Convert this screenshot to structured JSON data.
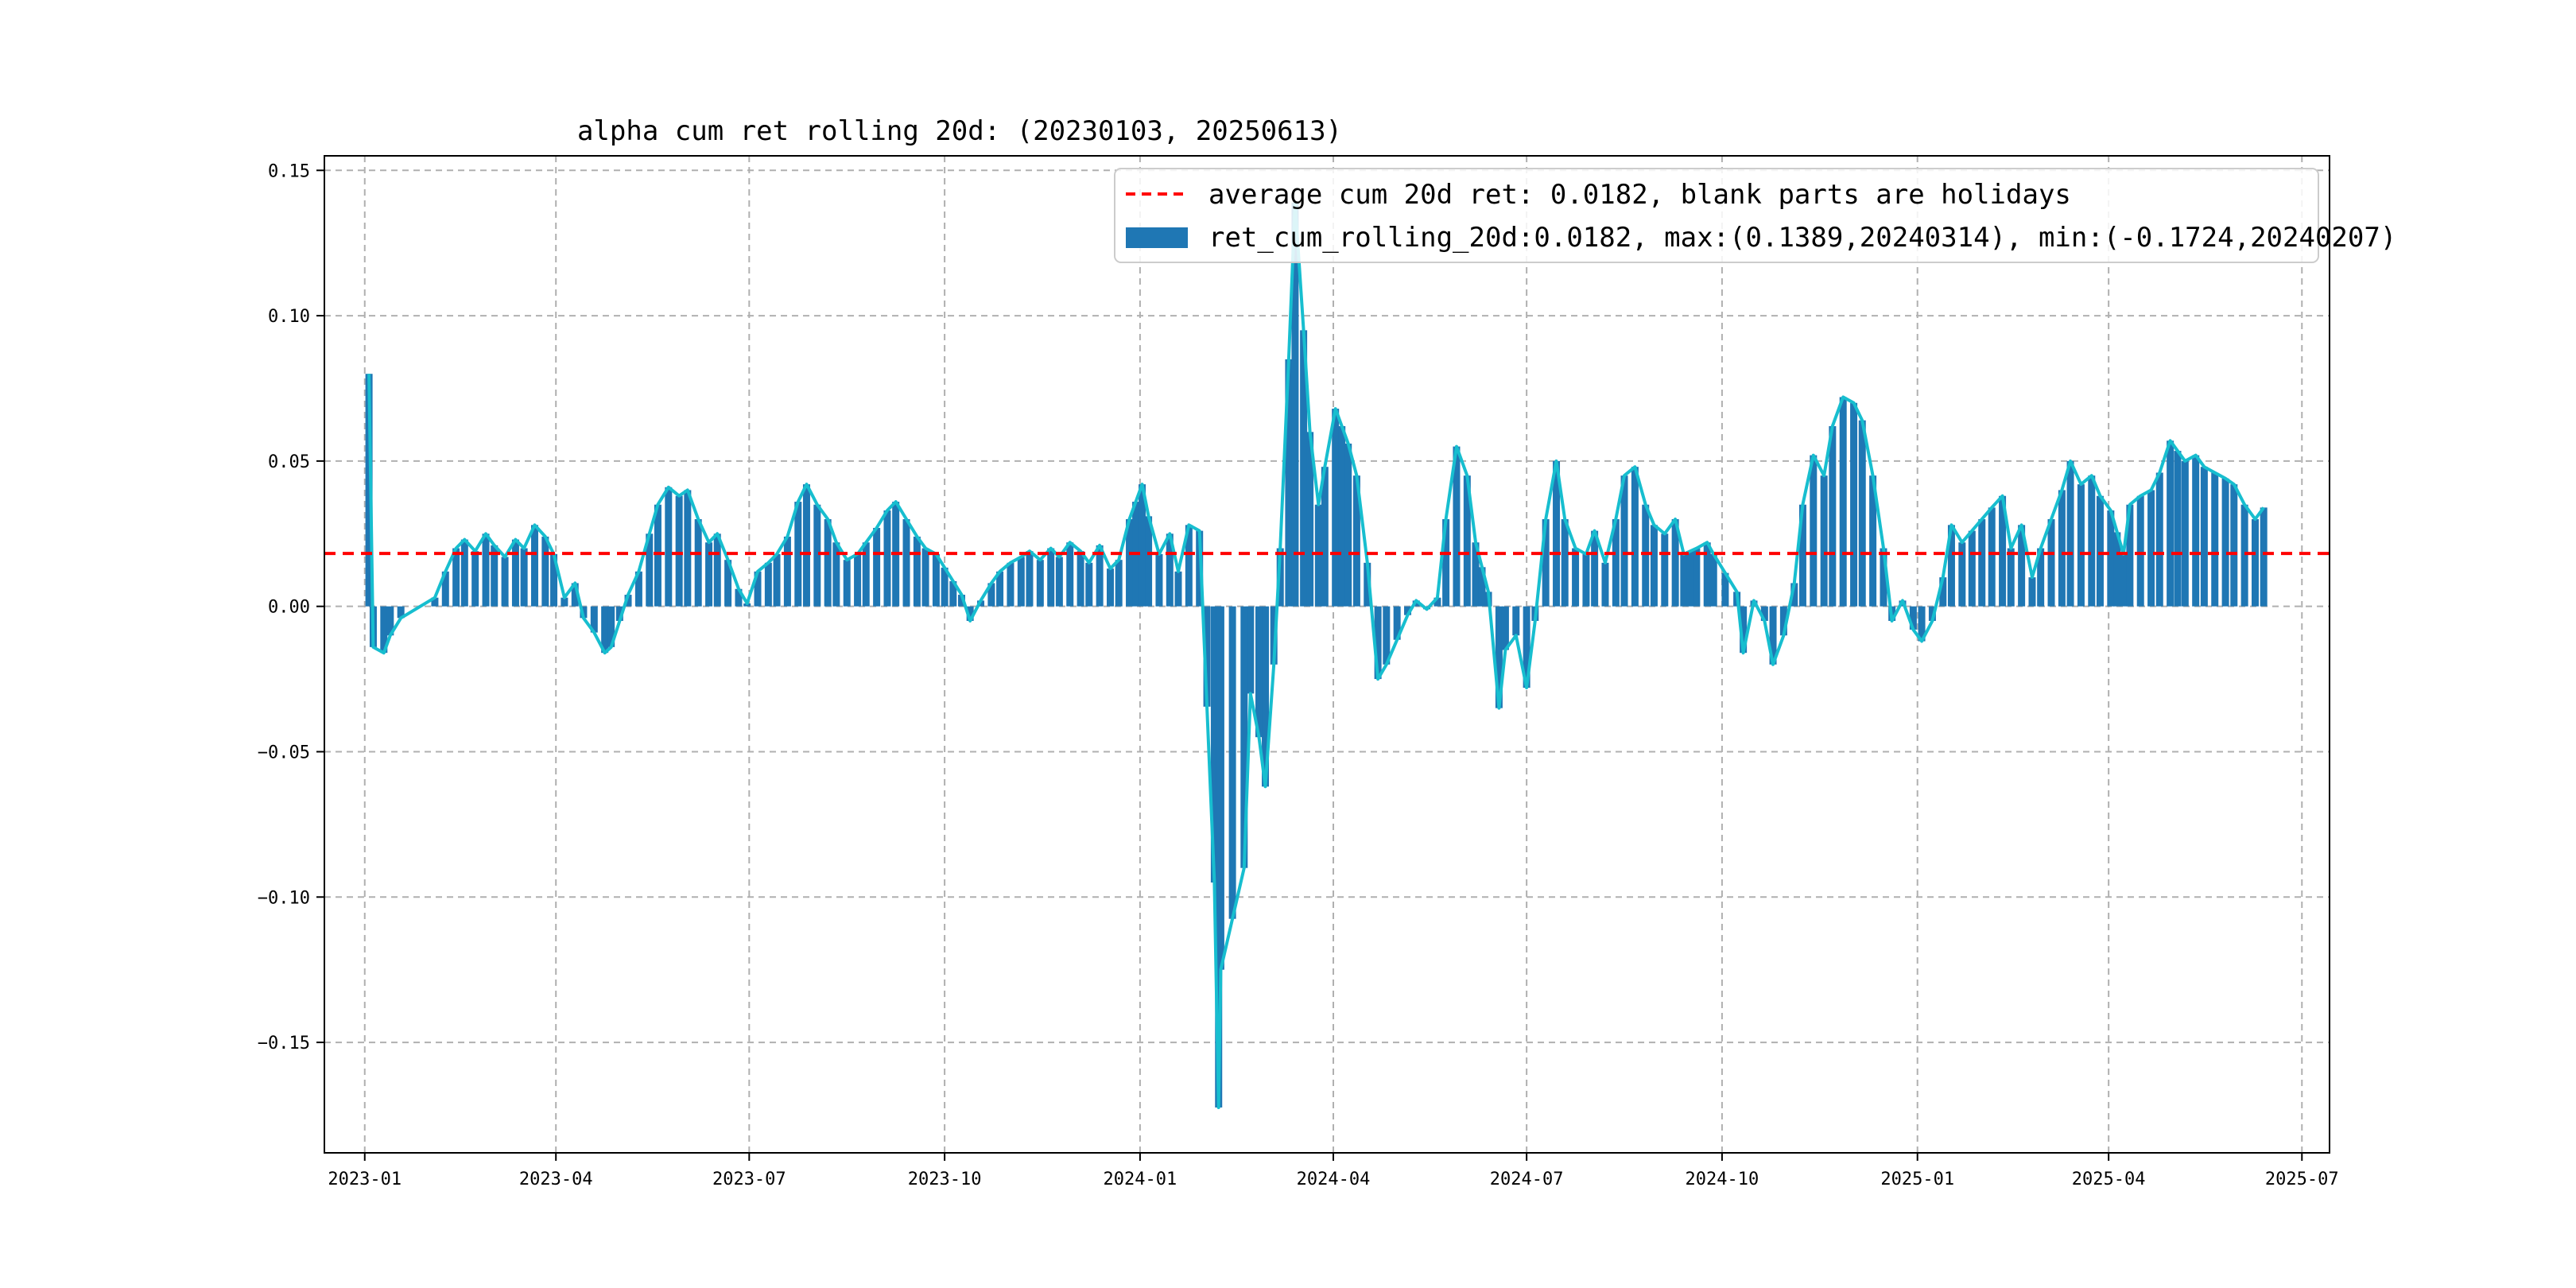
{
  "chart_data": {
    "type": "bar",
    "title": "alpha cum ret rolling 20d: (20230103, 20250613)",
    "xlabel": "",
    "ylabel": "",
    "x_range": [
      "2022-12-13",
      "2025-07-14"
    ],
    "ylim": [
      -0.188,
      0.155
    ],
    "x_ticks": [
      "2023-01-01",
      "2023-04-01",
      "2023-07-01",
      "2023-10-01",
      "2024-01-01",
      "2024-04-01",
      "2024-07-01",
      "2024-10-01",
      "2025-01-01",
      "2025-04-01",
      "2025-07-01"
    ],
    "x_tick_labels": [
      "2023-01",
      "2023-04",
      "2023-07",
      "2023-10",
      "2024-01",
      "2024-04",
      "2024-07",
      "2024-10",
      "2025-01",
      "2025-04",
      "2025-07"
    ],
    "y_ticks": [
      -0.15,
      -0.1,
      -0.05,
      0.0,
      0.05,
      0.1,
      0.15
    ],
    "y_tick_labels": [
      "−0.15",
      "−0.10",
      "−0.05",
      "0.00",
      "0.05",
      "0.10",
      "0.15"
    ],
    "grid": true,
    "legend_position": "top-right",
    "average": 0.0182,
    "series": [
      {
        "name": "ret_cum_rolling_20d:0.0182, max:(0.1389,20240314), min:(-0.1724,20240207)",
        "kind": "bar",
        "color": "#1f77b4"
      },
      {
        "name": "average cum 20d ret: 0.0182, blank parts are holidays",
        "kind": "hline",
        "value": 0.0182,
        "color": "#ff0000",
        "style": "dashed"
      },
      {
        "kind": "line",
        "color": "#17becf"
      }
    ],
    "points": [
      [
        "2023-01-03",
        0.08
      ],
      [
        "2023-01-05",
        -0.014
      ],
      [
        "2023-01-10",
        -0.016
      ],
      [
        "2023-01-13",
        -0.01
      ],
      [
        "2023-01-18",
        -0.004
      ],
      [
        "2023-02-03",
        0.003
      ],
      [
        "2023-02-08",
        0.012
      ],
      [
        "2023-02-13",
        0.02
      ],
      [
        "2023-02-17",
        0.023
      ],
      [
        "2023-02-22",
        0.019
      ],
      [
        "2023-02-27",
        0.025
      ],
      [
        "2023-03-03",
        0.021
      ],
      [
        "2023-03-08",
        0.017
      ],
      [
        "2023-03-13",
        0.023
      ],
      [
        "2023-03-17",
        0.02
      ],
      [
        "2023-03-22",
        0.028
      ],
      [
        "2023-03-27",
        0.024
      ],
      [
        "2023-03-31",
        0.018
      ],
      [
        "2023-04-05",
        0.003
      ],
      [
        "2023-04-10",
        0.008
      ],
      [
        "2023-04-14",
        -0.004
      ],
      [
        "2023-04-19",
        -0.009
      ],
      [
        "2023-04-24",
        -0.016
      ],
      [
        "2023-04-27",
        -0.014
      ],
      [
        "2023-05-05",
        0.004
      ],
      [
        "2023-05-10",
        0.012
      ],
      [
        "2023-05-15",
        0.025
      ],
      [
        "2023-05-19",
        0.035
      ],
      [
        "2023-05-24",
        0.041
      ],
      [
        "2023-05-29",
        0.038
      ],
      [
        "2023-06-02",
        0.04
      ],
      [
        "2023-06-07",
        0.03
      ],
      [
        "2023-06-12",
        0.022
      ],
      [
        "2023-06-16",
        0.025
      ],
      [
        "2023-06-21",
        0.016
      ],
      [
        "2023-06-26",
        0.006
      ],
      [
        "2023-06-30",
        0.001
      ],
      [
        "2023-07-05",
        0.012
      ],
      [
        "2023-07-10",
        0.015
      ],
      [
        "2023-07-14",
        0.018
      ],
      [
        "2023-07-19",
        0.024
      ],
      [
        "2023-07-24",
        0.036
      ],
      [
        "2023-07-28",
        0.042
      ],
      [
        "2023-08-02",
        0.035
      ],
      [
        "2023-08-07",
        0.03
      ],
      [
        "2023-08-11",
        0.022
      ],
      [
        "2023-08-16",
        0.016
      ],
      [
        "2023-08-21",
        0.018
      ],
      [
        "2023-08-25",
        0.022
      ],
      [
        "2023-08-30",
        0.027
      ],
      [
        "2023-09-04",
        0.033
      ],
      [
        "2023-09-08",
        0.036
      ],
      [
        "2023-09-13",
        0.03
      ],
      [
        "2023-09-18",
        0.024
      ],
      [
        "2023-09-22",
        0.02
      ],
      [
        "2023-09-27",
        0.018
      ],
      [
        "2023-10-09",
        0.004
      ],
      [
        "2023-10-13",
        -0.005
      ],
      [
        "2023-10-18",
        0.002
      ],
      [
        "2023-10-23",
        0.008
      ],
      [
        "2023-10-27",
        0.012
      ],
      [
        "2023-11-01",
        0.015
      ],
      [
        "2023-11-06",
        0.017
      ],
      [
        "2023-11-10",
        0.019
      ],
      [
        "2023-11-15",
        0.016
      ],
      [
        "2023-11-20",
        0.02
      ],
      [
        "2023-11-24",
        0.017
      ],
      [
        "2023-11-29",
        0.022
      ],
      [
        "2023-12-04",
        0.019
      ],
      [
        "2023-12-08",
        0.015
      ],
      [
        "2023-12-13",
        0.021
      ],
      [
        "2023-12-18",
        0.013
      ],
      [
        "2023-12-22",
        0.016
      ],
      [
        "2023-12-27",
        0.03
      ],
      [
        "2024-01-02",
        0.042
      ],
      [
        "2024-01-05",
        0.031
      ],
      [
        "2024-01-10",
        0.018
      ],
      [
        "2024-01-15",
        0.025
      ],
      [
        "2024-01-19",
        0.012
      ],
      [
        "2024-01-24",
        0.028
      ],
      [
        "2024-01-29",
        0.026
      ],
      [
        "2024-02-05",
        -0.095
      ],
      [
        "2024-02-07",
        -0.1724
      ],
      [
        "2024-02-08",
        -0.125
      ],
      [
        "2024-02-19",
        -0.09
      ],
      [
        "2024-02-22",
        -0.03
      ],
      [
        "2024-02-26",
        -0.045
      ],
      [
        "2024-02-29",
        -0.062
      ],
      [
        "2024-03-04",
        -0.02
      ],
      [
        "2024-03-07",
        0.02
      ],
      [
        "2024-03-11",
        0.085
      ],
      [
        "2024-03-14",
        0.1389
      ],
      [
        "2024-03-18",
        0.095
      ],
      [
        "2024-03-21",
        0.06
      ],
      [
        "2024-03-25",
        0.035
      ],
      [
        "2024-03-28",
        0.048
      ],
      [
        "2024-04-02",
        0.068
      ],
      [
        "2024-04-08",
        0.056
      ],
      [
        "2024-04-12",
        0.045
      ],
      [
        "2024-04-17",
        0.015
      ],
      [
        "2024-04-22",
        -0.025
      ],
      [
        "2024-04-26",
        -0.02
      ],
      [
        "2024-05-06",
        -0.003
      ],
      [
        "2024-05-10",
        0.002
      ],
      [
        "2024-05-15",
        -0.001
      ],
      [
        "2024-05-20",
        0.003
      ],
      [
        "2024-05-24",
        0.03
      ],
      [
        "2024-05-29",
        0.055
      ],
      [
        "2024-06-03",
        0.045
      ],
      [
        "2024-06-07",
        0.022
      ],
      [
        "2024-06-13",
        0.005
      ],
      [
        "2024-06-18",
        -0.035
      ],
      [
        "2024-06-21",
        -0.015
      ],
      [
        "2024-06-26",
        -0.01
      ],
      [
        "2024-07-01",
        -0.028
      ],
      [
        "2024-07-05",
        -0.005
      ],
      [
        "2024-07-10",
        0.03
      ],
      [
        "2024-07-15",
        0.05
      ],
      [
        "2024-07-19",
        0.03
      ],
      [
        "2024-07-24",
        0.02
      ],
      [
        "2024-07-29",
        0.018
      ],
      [
        "2024-08-02",
        0.026
      ],
      [
        "2024-08-07",
        0.015
      ],
      [
        "2024-08-12",
        0.03
      ],
      [
        "2024-08-16",
        0.045
      ],
      [
        "2024-08-21",
        0.048
      ],
      [
        "2024-08-26",
        0.035
      ],
      [
        "2024-08-30",
        0.028
      ],
      [
        "2024-09-04",
        0.025
      ],
      [
        "2024-09-09",
        0.03
      ],
      [
        "2024-09-13",
        0.018
      ],
      [
        "2024-09-19",
        0.02
      ],
      [
        "2024-09-24",
        0.022
      ],
      [
        "2024-09-27",
        0.018
      ],
      [
        "2024-10-08",
        0.005
      ],
      [
        "2024-10-11",
        -0.016
      ],
      [
        "2024-10-16",
        0.002
      ],
      [
        "2024-10-21",
        -0.005
      ],
      [
        "2024-10-25",
        -0.02
      ],
      [
        "2024-10-30",
        -0.01
      ],
      [
        "2024-11-04",
        0.008
      ],
      [
        "2024-11-08",
        0.035
      ],
      [
        "2024-11-13",
        0.052
      ],
      [
        "2024-11-18",
        0.045
      ],
      [
        "2024-11-22",
        0.062
      ],
      [
        "2024-11-27",
        0.072
      ],
      [
        "2024-12-02",
        0.07
      ],
      [
        "2024-12-06",
        0.064
      ],
      [
        "2024-12-11",
        0.045
      ],
      [
        "2024-12-16",
        0.02
      ],
      [
        "2024-12-20",
        -0.005
      ],
      [
        "2024-12-25",
        0.002
      ],
      [
        "2024-12-30",
        -0.008
      ],
      [
        "2025-01-03",
        -0.012
      ],
      [
        "2025-01-08",
        -0.005
      ],
      [
        "2025-01-13",
        0.01
      ],
      [
        "2025-01-17",
        0.028
      ],
      [
        "2025-01-22",
        0.022
      ],
      [
        "2025-02-05",
        0.034
      ],
      [
        "2025-02-10",
        0.038
      ],
      [
        "2025-02-14",
        0.02
      ],
      [
        "2025-02-19",
        0.028
      ],
      [
        "2025-02-24",
        0.01
      ],
      [
        "2025-02-28",
        0.02
      ],
      [
        "2025-03-05",
        0.03
      ],
      [
        "2025-03-10",
        0.04
      ],
      [
        "2025-03-14",
        0.05
      ],
      [
        "2025-03-19",
        0.042
      ],
      [
        "2025-03-24",
        0.045
      ],
      [
        "2025-03-28",
        0.038
      ],
      [
        "2025-04-02",
        0.033
      ],
      [
        "2025-04-08",
        0.018
      ],
      [
        "2025-04-11",
        0.035
      ],
      [
        "2025-04-16",
        0.038
      ],
      [
        "2025-04-21",
        0.04
      ],
      [
        "2025-04-25",
        0.046
      ],
      [
        "2025-04-30",
        0.057
      ],
      [
        "2025-05-07",
        0.05
      ],
      [
        "2025-05-12",
        0.052
      ],
      [
        "2025-05-16",
        0.048
      ],
      [
        "2025-05-21",
        0.046
      ],
      [
        "2025-05-26",
        0.044
      ],
      [
        "2025-05-30",
        0.042
      ],
      [
        "2025-06-04",
        0.035
      ],
      [
        "2025-06-09",
        0.03
      ],
      [
        "2025-06-13",
        0.034
      ]
    ]
  }
}
